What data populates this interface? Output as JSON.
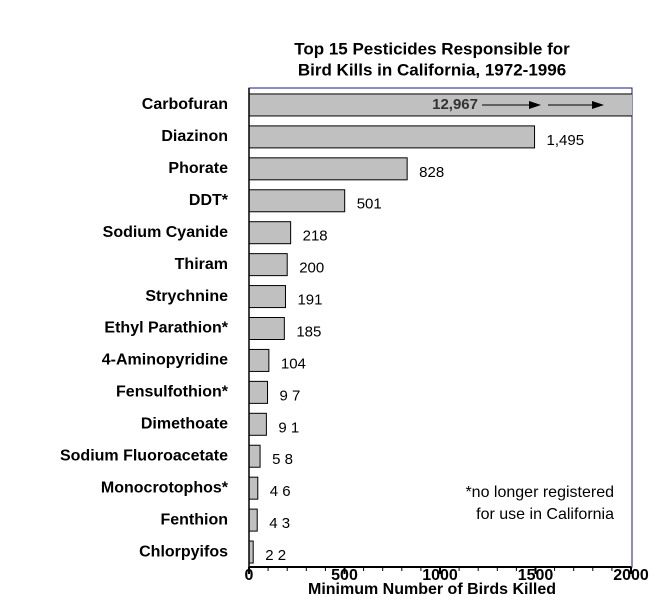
{
  "chart_data": {
    "type": "bar",
    "orientation": "horizontal",
    "title": [
      "Top 15 Pesticides Responsible for",
      "Bird Kills in California, 1972-1996"
    ],
    "xlabel": "Minimum Number of Birds Killed",
    "categories": [
      "Carbofuran",
      "Diazinon",
      "Phorate",
      "DDT*",
      "Sodium Cyanide",
      "Thiram",
      "Strychnine",
      "Ethyl Parathion*",
      "4-Aminopyridine",
      "Fensulfothion*",
      "Dimethoate",
      "Sodium Fluoroacetate",
      "Monocrotophos*",
      "Fenthion",
      "Chlorpyifos"
    ],
    "values": [
      12967,
      1495,
      828,
      501,
      218,
      200,
      191,
      185,
      104,
      97,
      91,
      58,
      46,
      43,
      22
    ],
    "value_labels": [
      "12,967",
      "1,495",
      "828",
      "501",
      "218",
      "200",
      "191",
      "185",
      "104",
      "9 7",
      "9 1",
      "5 8",
      "4 6",
      "4 3",
      "2 2"
    ],
    "color": "#c0c0c0",
    "xlim": [
      0,
      2000
    ],
    "xticks": [
      0,
      500,
      1000,
      1500,
      2000
    ],
    "annotation": [
      "*no longer registered",
      "for use in California"
    ]
  }
}
